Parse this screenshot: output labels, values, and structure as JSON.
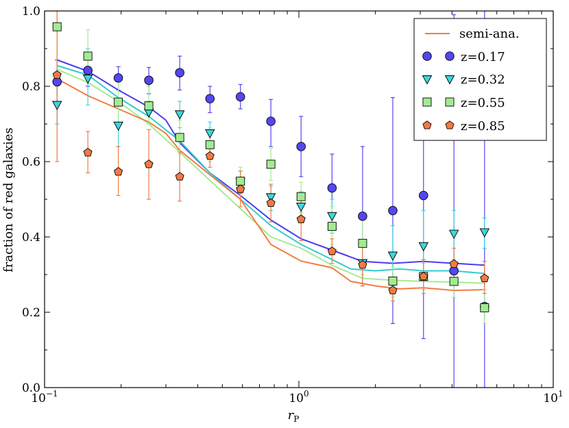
{
  "chart_data": {
    "type": "scatter",
    "title": "",
    "xlabel_main": "r",
    "xlabel_sub": "P",
    "ylabel": "fraction of red galaxies",
    "xscale": "log",
    "xlim": [
      0.1,
      10
    ],
    "ylim": [
      0.0,
      1.0
    ],
    "x_tick_labels": [
      {
        "value": 0.1,
        "base": "10",
        "exp": "−1"
      },
      {
        "value": 1,
        "base": "10",
        "exp": "0"
      },
      {
        "value": 10,
        "base": "10",
        "exp": "1"
      }
    ],
    "y_ticks": [
      0.0,
      0.2,
      0.4,
      0.6,
      0.8,
      1.0
    ],
    "y_tick_labels": [
      "0.0",
      "0.2",
      "0.4",
      "0.6",
      "0.8",
      "1.0"
    ],
    "legend_position": "top-right",
    "semi_analytic_label": "semi-ana.",
    "series": [
      {
        "name": "z=0.17",
        "marker": "circle",
        "color": "#5546f0",
        "line_color": "#4a3cf0",
        "points": [
          {
            "x": 0.112,
            "y": 0.812,
            "lo": 0.755,
            "hi": 0.87
          },
          {
            "x": 0.148,
            "y": 0.842,
            "lo": 0.8,
            "hi": 0.885
          },
          {
            "x": 0.195,
            "y": 0.822,
            "lo": 0.79,
            "hi": 0.852
          },
          {
            "x": 0.257,
            "y": 0.816,
            "lo": 0.78,
            "hi": 0.85
          },
          {
            "x": 0.34,
            "y": 0.836,
            "lo": 0.79,
            "hi": 0.88
          },
          {
            "x": 0.447,
            "y": 0.767,
            "lo": 0.73,
            "hi": 0.8
          },
          {
            "x": 0.589,
            "y": 0.772,
            "lo": 0.74,
            "hi": 0.805
          },
          {
            "x": 0.776,
            "y": 0.707,
            "lo": 0.64,
            "hi": 0.765
          },
          {
            "x": 1.02,
            "y": 0.64,
            "lo": 0.56,
            "hi": 0.72
          },
          {
            "x": 1.35,
            "y": 0.53,
            "lo": 0.42,
            "hi": 0.62
          },
          {
            "x": 1.78,
            "y": 0.455,
            "lo": 0.27,
            "hi": 0.64
          },
          {
            "x": 2.34,
            "y": 0.47,
            "lo": 0.17,
            "hi": 0.77
          },
          {
            "x": 3.09,
            "y": 0.51,
            "lo": 0.13,
            "hi": 0.895
          },
          {
            "x": 4.07,
            "y": 0.31,
            "lo": 0.0,
            "hi": 0.99
          },
          {
            "x": 5.37,
            "y": 0.215,
            "lo": 0.0,
            "hi": 1.0
          }
        ],
        "semi_ana_curve": [
          {
            "x": 0.112,
            "y": 0.87
          },
          {
            "x": 0.148,
            "y": 0.84
          },
          {
            "x": 0.195,
            "y": 0.79
          },
          {
            "x": 0.257,
            "y": 0.745
          },
          {
            "x": 0.3,
            "y": 0.71
          },
          {
            "x": 0.34,
            "y": 0.65
          },
          {
            "x": 0.447,
            "y": 0.57
          },
          {
            "x": 0.589,
            "y": 0.51
          },
          {
            "x": 0.776,
            "y": 0.445
          },
          {
            "x": 1.02,
            "y": 0.395
          },
          {
            "x": 1.35,
            "y": 0.365
          },
          {
            "x": 1.78,
            "y": 0.335
          },
          {
            "x": 2.34,
            "y": 0.33
          },
          {
            "x": 3.09,
            "y": 0.335
          },
          {
            "x": 4.07,
            "y": 0.33
          },
          {
            "x": 5.37,
            "y": 0.325
          }
        ]
      },
      {
        "name": "z=0.32",
        "marker": "triangle-down",
        "color": "#3cd6dc",
        "line_color": "#33cccc",
        "points": [
          {
            "x": 0.112,
            "y": 0.75,
            "lo": 0.7,
            "hi": 0.8
          },
          {
            "x": 0.148,
            "y": 0.82,
            "lo": 0.75,
            "hi": 0.9
          },
          {
            "x": 0.195,
            "y": 0.695,
            "lo": 0.64,
            "hi": 0.75
          },
          {
            "x": 0.257,
            "y": 0.73,
            "lo": 0.7,
            "hi": 0.76
          },
          {
            "x": 0.34,
            "y": 0.725,
            "lo": 0.69,
            "hi": 0.76
          },
          {
            "x": 0.447,
            "y": 0.675,
            "lo": 0.645,
            "hi": 0.705
          },
          {
            "x": 0.589,
            "y": 0.545,
            "lo": 0.515,
            "hi": 0.575
          },
          {
            "x": 0.776,
            "y": 0.505,
            "lo": 0.47,
            "hi": 0.535
          },
          {
            "x": 1.02,
            "y": 0.48,
            "lo": 0.44,
            "hi": 0.52
          },
          {
            "x": 1.35,
            "y": 0.455,
            "lo": 0.41,
            "hi": 0.5
          },
          {
            "x": 1.78,
            "y": 0.33,
            "lo": 0.27,
            "hi": 0.39
          },
          {
            "x": 2.34,
            "y": 0.35,
            "lo": 0.27,
            "hi": 0.43
          },
          {
            "x": 3.09,
            "y": 0.375,
            "lo": 0.29,
            "hi": 0.47
          },
          {
            "x": 4.07,
            "y": 0.408,
            "lo": 0.34,
            "hi": 0.47
          },
          {
            "x": 5.37,
            "y": 0.412,
            "lo": 0.37,
            "hi": 0.45
          }
        ],
        "semi_ana_curve": [
          {
            "x": 0.112,
            "y": 0.855
          },
          {
            "x": 0.148,
            "y": 0.83
          },
          {
            "x": 0.195,
            "y": 0.77
          },
          {
            "x": 0.257,
            "y": 0.72
          },
          {
            "x": 0.34,
            "y": 0.655
          },
          {
            "x": 0.447,
            "y": 0.57
          },
          {
            "x": 0.589,
            "y": 0.5
          },
          {
            "x": 0.776,
            "y": 0.43
          },
          {
            "x": 1.02,
            "y": 0.38
          },
          {
            "x": 1.35,
            "y": 0.34
          },
          {
            "x": 1.6,
            "y": 0.315
          },
          {
            "x": 2.0,
            "y": 0.31
          },
          {
            "x": 2.5,
            "y": 0.315
          },
          {
            "x": 3.09,
            "y": 0.31
          },
          {
            "x": 4.07,
            "y": 0.31
          },
          {
            "x": 5.37,
            "y": 0.303
          }
        ]
      },
      {
        "name": "z=0.55",
        "marker": "square",
        "color": "#a3eb91",
        "line_color": "#a3eb91",
        "points": [
          {
            "x": 0.112,
            "y": 0.958,
            "lo": 0.8,
            "hi": 1.0
          },
          {
            "x": 0.148,
            "y": 0.88,
            "lo": 0.82,
            "hi": 0.95
          },
          {
            "x": 0.195,
            "y": 0.758,
            "lo": 0.7,
            "hi": 0.82
          },
          {
            "x": 0.257,
            "y": 0.748,
            "lo": 0.7,
            "hi": 0.8
          },
          {
            "x": 0.34,
            "y": 0.664,
            "lo": 0.62,
            "hi": 0.71
          },
          {
            "x": 0.447,
            "y": 0.645,
            "lo": 0.6,
            "hi": 0.69
          },
          {
            "x": 0.589,
            "y": 0.548,
            "lo": 0.51,
            "hi": 0.585
          },
          {
            "x": 0.776,
            "y": 0.593,
            "lo": 0.55,
            "hi": 0.635
          },
          {
            "x": 1.02,
            "y": 0.507,
            "lo": 0.465,
            "hi": 0.545
          },
          {
            "x": 1.35,
            "y": 0.428,
            "lo": 0.38,
            "hi": 0.48
          },
          {
            "x": 1.78,
            "y": 0.383,
            "lo": 0.3,
            "hi": 0.46
          },
          {
            "x": 2.34,
            "y": 0.283,
            "lo": 0.24,
            "hi": 0.32
          },
          {
            "x": 3.09,
            "y": 0.295,
            "lo": 0.26,
            "hi": 0.33
          },
          {
            "x": 4.07,
            "y": 0.282,
            "lo": 0.24,
            "hi": 0.32
          },
          {
            "x": 5.37,
            "y": 0.212,
            "lo": 0.17,
            "hi": 0.26
          }
        ],
        "semi_ana_curve": [
          {
            "x": 0.112,
            "y": 0.845
          },
          {
            "x": 0.148,
            "y": 0.81
          },
          {
            "x": 0.195,
            "y": 0.76
          },
          {
            "x": 0.257,
            "y": 0.7
          },
          {
            "x": 0.34,
            "y": 0.625
          },
          {
            "x": 0.447,
            "y": 0.55
          },
          {
            "x": 0.589,
            "y": 0.475
          },
          {
            "x": 0.776,
            "y": 0.4
          },
          {
            "x": 1.02,
            "y": 0.37
          },
          {
            "x": 1.35,
            "y": 0.325
          },
          {
            "x": 1.78,
            "y": 0.29
          },
          {
            "x": 2.34,
            "y": 0.285
          },
          {
            "x": 3.09,
            "y": 0.282
          },
          {
            "x": 4.07,
            "y": 0.28
          },
          {
            "x": 5.37,
            "y": 0.277
          }
        ]
      },
      {
        "name": "z=0.85",
        "marker": "pentagon",
        "color": "#f27a42",
        "line_color": "#f27a42",
        "points": [
          {
            "x": 0.112,
            "y": 0.83,
            "lo": 0.6,
            "hi": 1.0
          },
          {
            "x": 0.148,
            "y": 0.624,
            "lo": 0.57,
            "hi": 0.68
          },
          {
            "x": 0.195,
            "y": 0.573,
            "lo": 0.51,
            "hi": 0.64
          },
          {
            "x": 0.257,
            "y": 0.593,
            "lo": 0.5,
            "hi": 0.685
          },
          {
            "x": 0.34,
            "y": 0.56,
            "lo": 0.495,
            "hi": 0.625
          },
          {
            "x": 0.447,
            "y": 0.615,
            "lo": 0.585,
            "hi": 0.645
          },
          {
            "x": 0.589,
            "y": 0.527,
            "lo": 0.48,
            "hi": 0.575
          },
          {
            "x": 0.776,
            "y": 0.49,
            "lo": 0.44,
            "hi": 0.54
          },
          {
            "x": 1.02,
            "y": 0.447,
            "lo": 0.39,
            "hi": 0.505
          },
          {
            "x": 1.35,
            "y": 0.362,
            "lo": 0.33,
            "hi": 0.395
          },
          {
            "x": 1.78,
            "y": 0.326,
            "lo": 0.27,
            "hi": 0.38
          },
          {
            "x": 2.34,
            "y": 0.258,
            "lo": 0.23,
            "hi": 0.29
          },
          {
            "x": 3.09,
            "y": 0.295,
            "lo": 0.25,
            "hi": 0.34
          },
          {
            "x": 4.07,
            "y": 0.328,
            "lo": 0.28,
            "hi": 0.37
          },
          {
            "x": 5.37,
            "y": 0.29,
            "lo": 0.25,
            "hi": 0.335
          }
        ],
        "semi_ana_curve": [
          {
            "x": 0.112,
            "y": 0.82
          },
          {
            "x": 0.148,
            "y": 0.775
          },
          {
            "x": 0.195,
            "y": 0.74
          },
          {
            "x": 0.257,
            "y": 0.705
          },
          {
            "x": 0.3,
            "y": 0.675
          },
          {
            "x": 0.34,
            "y": 0.63
          },
          {
            "x": 0.447,
            "y": 0.565
          },
          {
            "x": 0.589,
            "y": 0.5
          },
          {
            "x": 0.776,
            "y": 0.38
          },
          {
            "x": 1.02,
            "y": 0.336
          },
          {
            "x": 1.35,
            "y": 0.318
          },
          {
            "x": 1.6,
            "y": 0.282
          },
          {
            "x": 2.0,
            "y": 0.27
          },
          {
            "x": 2.5,
            "y": 0.262
          },
          {
            "x": 3.09,
            "y": 0.265
          },
          {
            "x": 4.07,
            "y": 0.258
          },
          {
            "x": 5.37,
            "y": 0.26
          }
        ]
      }
    ]
  }
}
